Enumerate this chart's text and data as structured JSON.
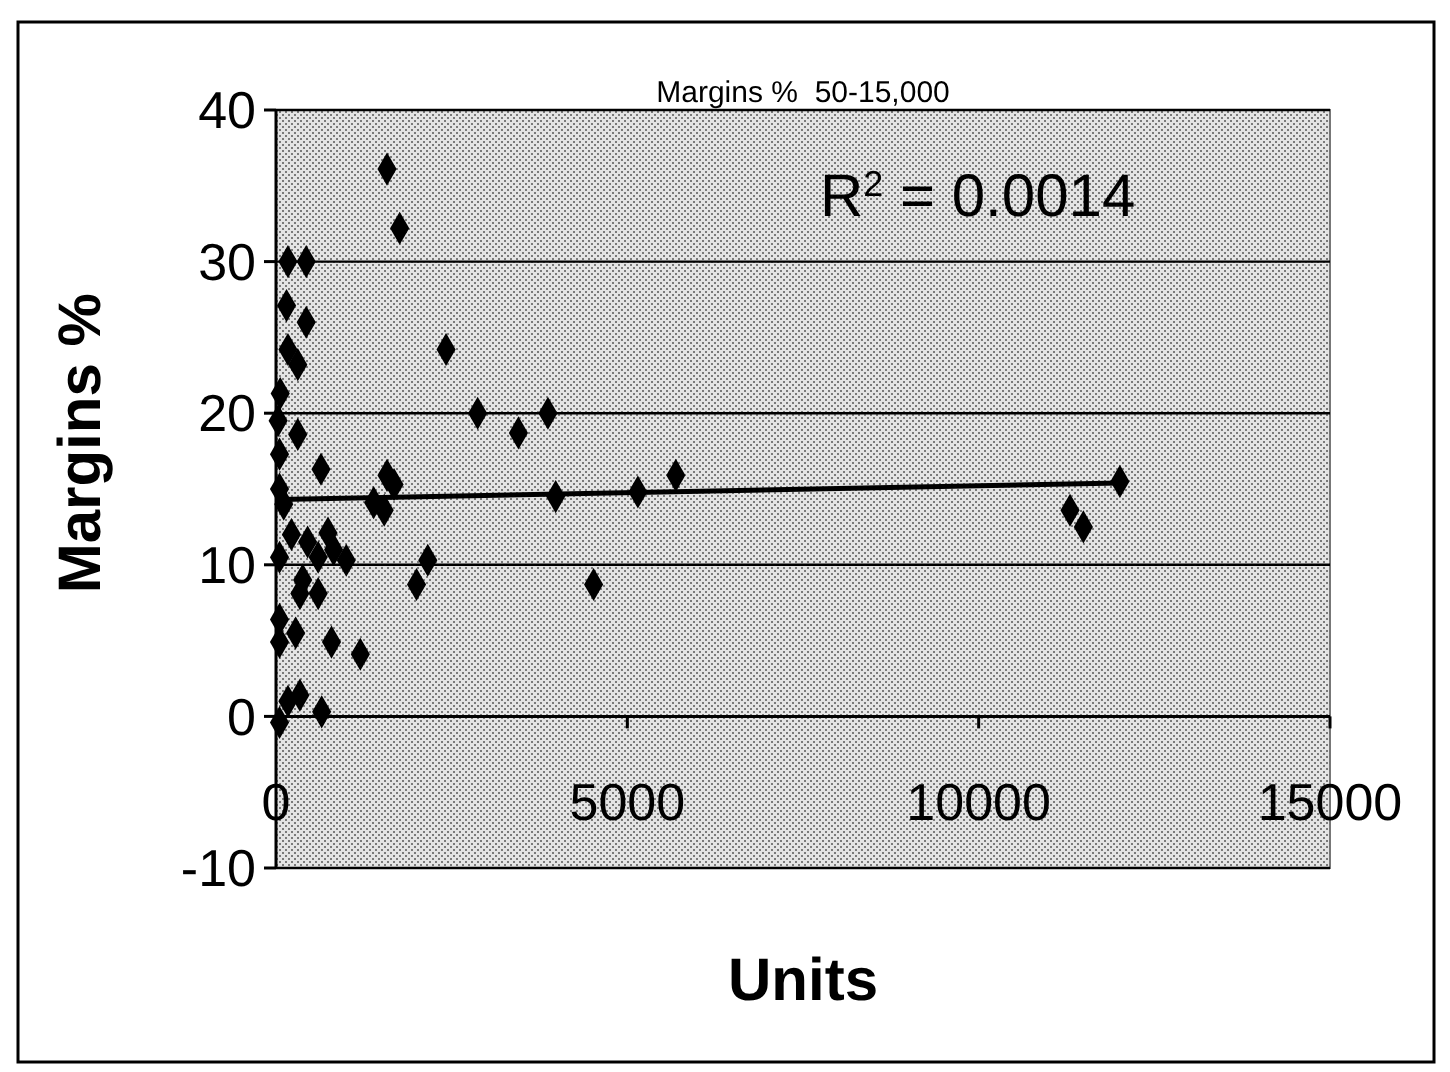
{
  "chart_data": {
    "type": "scatter",
    "title": "Margins %  50-15,000",
    "xlabel": "Units",
    "ylabel": "Margins %",
    "annotations": [
      "R$^{2}$ = 0.0014"
    ],
    "xlim": [
      0,
      15000
    ],
    "xticks": [
      0,
      5000,
      10000,
      15000
    ],
    "ylim": [
      -10,
      40
    ],
    "yticks": [
      -10,
      0,
      10,
      20,
      30,
      40
    ],
    "grid": "y",
    "series": [
      {
        "marker": "diamond",
        "color": "#000000",
        "x": [
          1580,
          1760,
          170,
          430,
          150,
          430,
          170,
          310,
          2420,
          2870,
          3450,
          3870,
          60,
          30,
          310,
          50,
          640,
          1580,
          1680,
          1390,
          1540,
          3980,
          5150,
          5690,
          12010,
          11300,
          11490,
          2160,
          2000,
          4520,
          790,
          1200,
          650,
          50,
          110,
          220,
          450,
          740,
          820,
          1000,
          600,
          380,
          600,
          340,
          50,
          50,
          280,
          50,
          340,
          170,
          50
        ],
        "values": [
          36.1,
          32.2,
          30,
          30,
          27.1,
          26,
          24.2,
          23.2,
          24.2,
          20,
          18.7,
          20,
          21.3,
          19.5,
          18.6,
          17.3,
          16.3,
          15.9,
          15.3,
          14.1,
          13.6,
          14.5,
          14.8,
          15.9,
          15.5,
          13.6,
          12.5,
          10.3,
          8.7,
          8.7,
          4.9,
          4.1,
          0.3,
          15,
          14,
          12,
          11.5,
          12.1,
          11,
          10.3,
          10.5,
          9,
          8.1,
          8.1,
          10.5,
          6.4,
          5.5,
          4.9,
          1.4,
          1,
          -0.4
        ]
      },
      {
        "type": "line",
        "marker": "none",
        "color": "#000000",
        "x": [
          50,
          12010
        ],
        "values": [
          14.3,
          15.4
        ]
      }
    ]
  }
}
